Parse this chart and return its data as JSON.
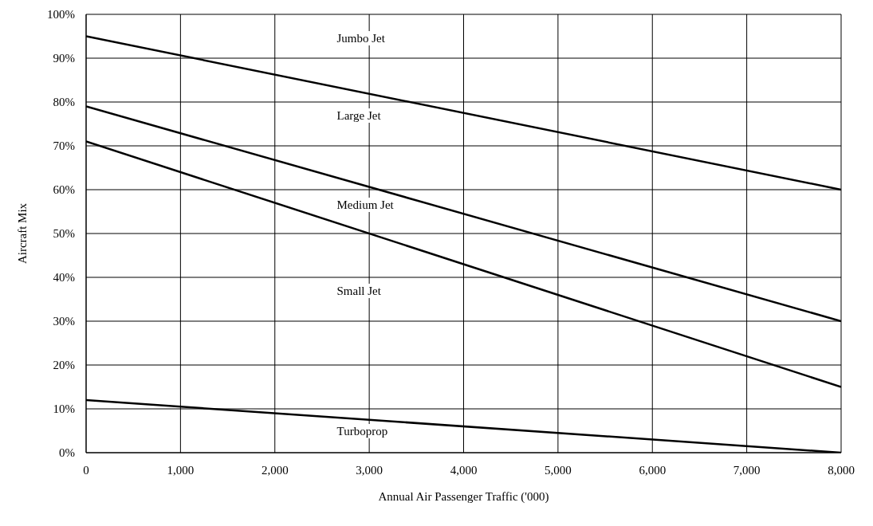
{
  "chart_data": {
    "type": "line",
    "xlabel": "Annual Air Passenger Traffic ('000)",
    "ylabel": "Aircraft Mix",
    "x": [
      0,
      8000
    ],
    "series": [
      {
        "color": "#000000",
        "values": [
          95,
          60
        ]
      },
      {
        "color": "#000000",
        "values": [
          79,
          30
        ]
      },
      {
        "color": "#000000",
        "values": [
          71,
          15
        ]
      },
      {
        "color": "#000000",
        "values": [
          12,
          0
        ]
      }
    ],
    "xlim": [
      0,
      8000
    ],
    "xticks": [
      0,
      {
        "value": 1000,
        "label": "1,000"
      },
      {
        "value": 2000,
        "label": "2,000"
      },
      {
        "value": 3000,
        "label": "3,000"
      },
      {
        "value": 4000,
        "label": "4,000"
      },
      {
        "value": 5000,
        "label": "5,000"
      },
      {
        "value": 6000,
        "label": "6,000"
      },
      {
        "value": 7000,
        "label": "7,000"
      },
      {
        "value": 8000,
        "label": "8,000"
      }
    ],
    "ylim": [
      0,
      100
    ],
    "yticks": [
      {
        "value": 0,
        "label": "0%"
      },
      {
        "value": 10,
        "label": "10%"
      },
      {
        "value": 20,
        "label": "20%"
      },
      {
        "value": 30,
        "label": "30%"
      },
      {
        "value": 40,
        "label": "40%"
      },
      {
        "value": 50,
        "label": "50%"
      },
      {
        "value": 60,
        "label": "60%"
      },
      {
        "value": 70,
        "label": "70%"
      },
      {
        "value": 80,
        "label": "80%"
      },
      {
        "value": 90,
        "label": "90%"
      },
      {
        "value": 100,
        "label": "100%"
      }
    ],
    "grid": true,
    "marker": "none",
    "line_style": "solid",
    "annotations": [
      "Jumbo Jet",
      "Large Jet",
      "Medium Jet",
      "Small Jet",
      "Turboprop"
    ]
  }
}
